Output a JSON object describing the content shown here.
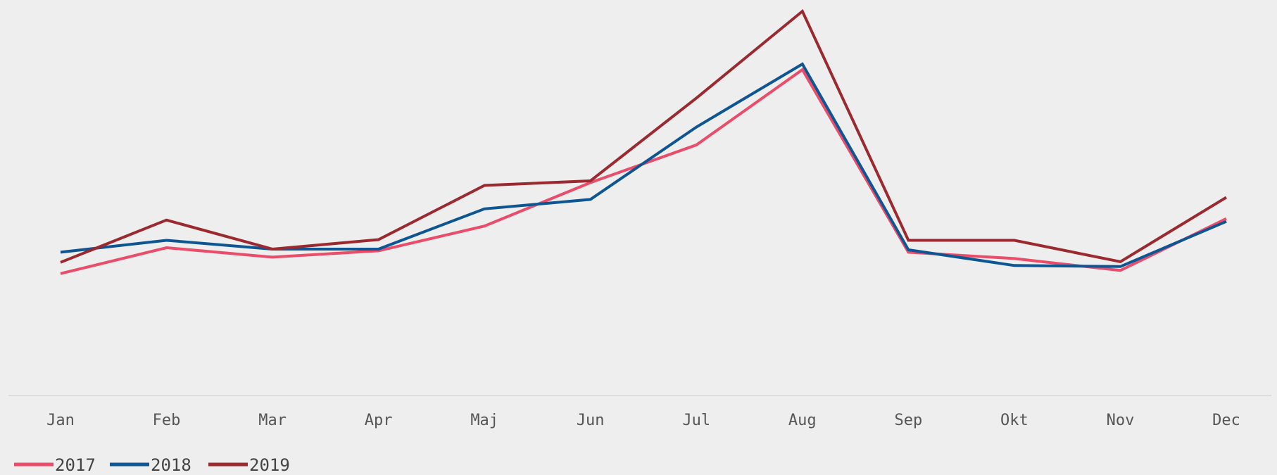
{
  "chart_data": {
    "type": "line",
    "categories": [
      "Jan",
      "Feb",
      "Mar",
      "Apr",
      "Maj",
      "Jun",
      "Jul",
      "Aug",
      "Sep",
      "Okt",
      "Nov",
      "Dec"
    ],
    "ylim": [
      0,
      100
    ],
    "grid": false,
    "legend_position": "bottom-left",
    "series": [
      {
        "name": "2017",
        "color": "#ea4d6a",
        "values": [
          25.0,
          32.4,
          29.7,
          31.5,
          38.6,
          51.0,
          61.8,
          83.3,
          31.1,
          29.3,
          25.9,
          40.7
        ]
      },
      {
        "name": "2018",
        "color": "#0e5593",
        "values": [
          31.1,
          34.5,
          32.0,
          32.0,
          43.5,
          46.2,
          66.9,
          84.9,
          31.8,
          27.3,
          27.0,
          39.9
        ]
      },
      {
        "name": "2019",
        "color": "#9b2a30",
        "values": [
          28.2,
          40.3,
          32.0,
          34.7,
          50.2,
          51.5,
          75.2,
          100.0,
          34.5,
          34.5,
          28.4,
          46.8
        ]
      }
    ]
  }
}
